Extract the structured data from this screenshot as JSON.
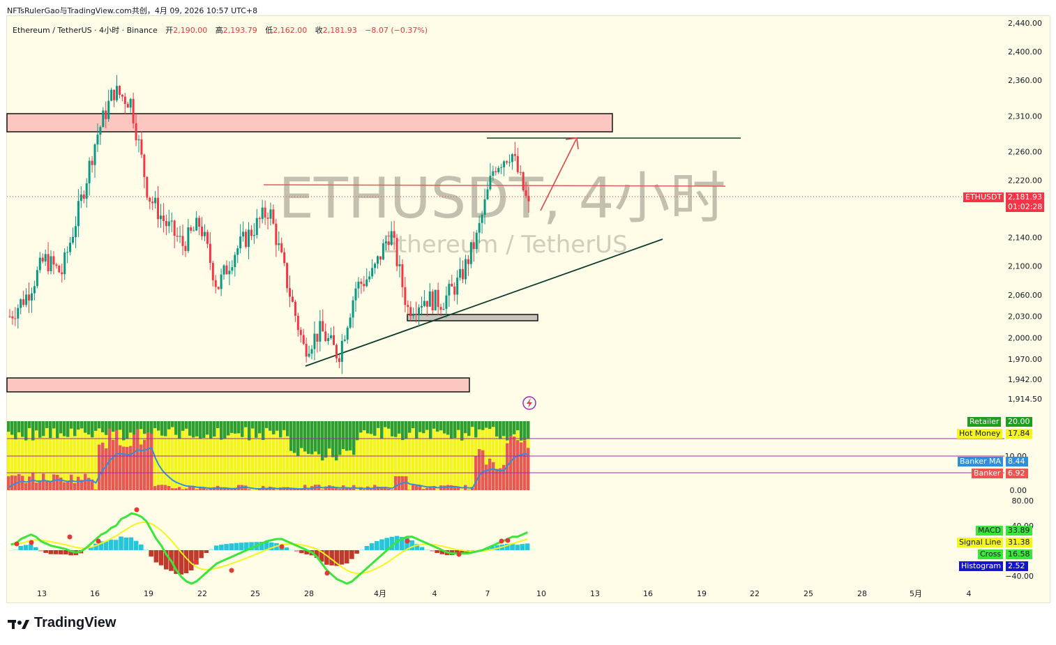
{
  "header": {
    "credit": "NFTsRulerGao与TradingView.com共创，4月 09, 2026 10:57 UTC+8"
  },
  "legend": {
    "pair": "Ethereum / TetherUS · 4小时 · Binance",
    "open_label": "开",
    "open": "2,190.00",
    "high_label": "高",
    "high": "2,193.79",
    "low_label": "低",
    "low": "2,162.00",
    "close_label": "收",
    "close": "2,181.93",
    "change": "−8.07 (−0.37%)"
  },
  "watermark": {
    "symbol_line": "ETHUSDT, 4小时",
    "name_line": "Ethereum / TetherUS"
  },
  "price_axis": {
    "labels": [
      "2,440.00",
      "2,400.00",
      "2,360.00",
      "2,310.00",
      "2,260.00",
      "2,220.00",
      "2,140.00",
      "2,100.00",
      "2,060.00",
      "2,030.00",
      "2,000.00",
      "1,970.00",
      "1,942.00",
      "1,914.50"
    ]
  },
  "time_axis": {
    "labels": [
      "13",
      "16",
      "19",
      "22",
      "25",
      "28",
      "4月",
      "4",
      "7",
      "10",
      "13",
      "16",
      "19",
      "22",
      "25",
      "28",
      "5月",
      "4"
    ]
  },
  "price_badge": {
    "symbol": "ETHUSDT",
    "price": "2,181.93",
    "countdown": "01:02:28",
    "color": "#f23645"
  },
  "banker_panel": {
    "axis_labels": [
      "10.00",
      "0.00"
    ],
    "badges": [
      {
        "name": "Retailer",
        "value": "20.00",
        "color": "#1e9e1e"
      },
      {
        "name": "Hot Money",
        "value": "17.84",
        "color": "#f5f51e"
      },
      {
        "name": "Banker MA",
        "value": "8.44",
        "color": "#2f8fdc"
      },
      {
        "name": "Banker",
        "value": "6.92",
        "color": "#ef5350"
      }
    ]
  },
  "macd_panel": {
    "axis_labels": [
      "80.00",
      "40.00",
      "−40.00"
    ],
    "badges": [
      {
        "name": "MACD",
        "value": "33.89",
        "color": "#39e639"
      },
      {
        "name": "Signal Line",
        "value": "31.38",
        "color": "#f5f51e"
      },
      {
        "name": "Cross",
        "value": "16.58",
        "color": "#39e639"
      },
      {
        "name": "Histogram",
        "value": "2.52",
        "color": "#1515c8"
      }
    ]
  },
  "brand": "TradingView",
  "colors": {
    "up": "#089981",
    "down": "#f23645",
    "zone_fill": "#fbc7c0",
    "panel_bg": "#fffce8"
  },
  "chart_data": {
    "type": "candlestick",
    "symbol": "ETHUSDT",
    "timeframe": "4h",
    "ylim": [
      1900,
      2450
    ],
    "approx_close_path": [
      {
        "x": "03-12",
        "y": 2030
      },
      {
        "x": "03-13",
        "y": 2060
      },
      {
        "x": "03-14",
        "y": 2110
      },
      {
        "x": "03-15",
        "y": 2090
      },
      {
        "x": "03-16",
        "y": 2180
      },
      {
        "x": "03-17",
        "y": 2280
      },
      {
        "x": "03-17b",
        "y": 2345
      },
      {
        "x": "03-18",
        "y": 2330
      },
      {
        "x": "03-19",
        "y": 2200
      },
      {
        "x": "03-20",
        "y": 2160
      },
      {
        "x": "03-21",
        "y": 2130
      },
      {
        "x": "03-22",
        "y": 2160
      },
      {
        "x": "03-23",
        "y": 2070
      },
      {
        "x": "03-24",
        "y": 2120
      },
      {
        "x": "03-25",
        "y": 2150
      },
      {
        "x": "03-26",
        "y": 2180
      },
      {
        "x": "03-27",
        "y": 2080
      },
      {
        "x": "03-28",
        "y": 1985
      },
      {
        "x": "03-29",
        "y": 2010
      },
      {
        "x": "03-30",
        "y": 1975
      },
      {
        "x": "03-31",
        "y": 2070
      },
      {
        "x": "04-01",
        "y": 2090
      },
      {
        "x": "04-02",
        "y": 2150
      },
      {
        "x": "04-03",
        "y": 2040
      },
      {
        "x": "04-04",
        "y": 2055
      },
      {
        "x": "04-05",
        "y": 2050
      },
      {
        "x": "04-06",
        "y": 2080
      },
      {
        "x": "04-07",
        "y": 2140
      },
      {
        "x": "04-08",
        "y": 2240
      },
      {
        "x": "04-08b",
        "y": 2260
      },
      {
        "x": "04-09",
        "y": 2181.93
      }
    ],
    "zones": [
      {
        "name": "resistance-zone",
        "from": 2285,
        "to": 2310
      },
      {
        "name": "support-zone",
        "from": 1928,
        "to": 1945
      },
      {
        "name": "small-support-zone",
        "from": 2017,
        "to": 2025
      }
    ],
    "current_price": 2181.93
  }
}
